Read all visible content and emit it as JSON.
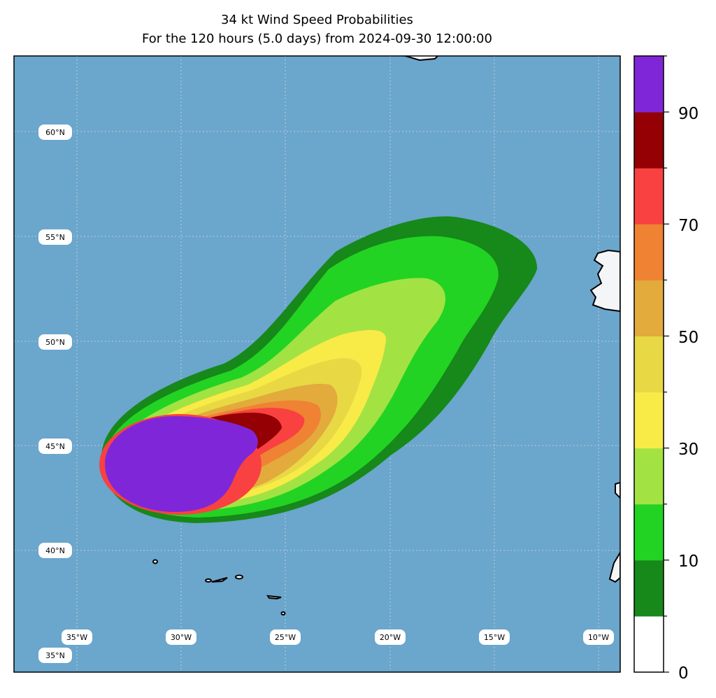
{
  "title": {
    "line1": "34 kt Wind Speed Probabilities",
    "line2": "For the 120 hours (5.0 days) from 2024-09-30 12:00:00"
  },
  "map": {
    "lon_labels": [
      "35°W",
      "30°W",
      "25°W",
      "20°W",
      "15°W",
      "10°W"
    ],
    "lat_labels": [
      "60°N",
      "55°N",
      "50°N",
      "45°N",
      "40°N",
      "35°N"
    ],
    "ocean_color": "#6ba6cc",
    "land_color": "#f4f5f7",
    "gridline_color": "#c8d6e0"
  },
  "colorbar": {
    "tick_labels": [
      "0",
      "10",
      "30",
      "50",
      "70",
      "90"
    ],
    "levels": [
      0,
      5,
      10,
      20,
      30,
      40,
      50,
      60,
      70,
      80,
      90,
      100
    ],
    "colors": [
      "#ffffff",
      "#17881a",
      "#23d323",
      "#a2e343",
      "#f9eb47",
      "#e8d944",
      "#e3aa3c",
      "#ef8233",
      "#f94141",
      "#940003",
      "#7f27d8"
    ]
  }
}
